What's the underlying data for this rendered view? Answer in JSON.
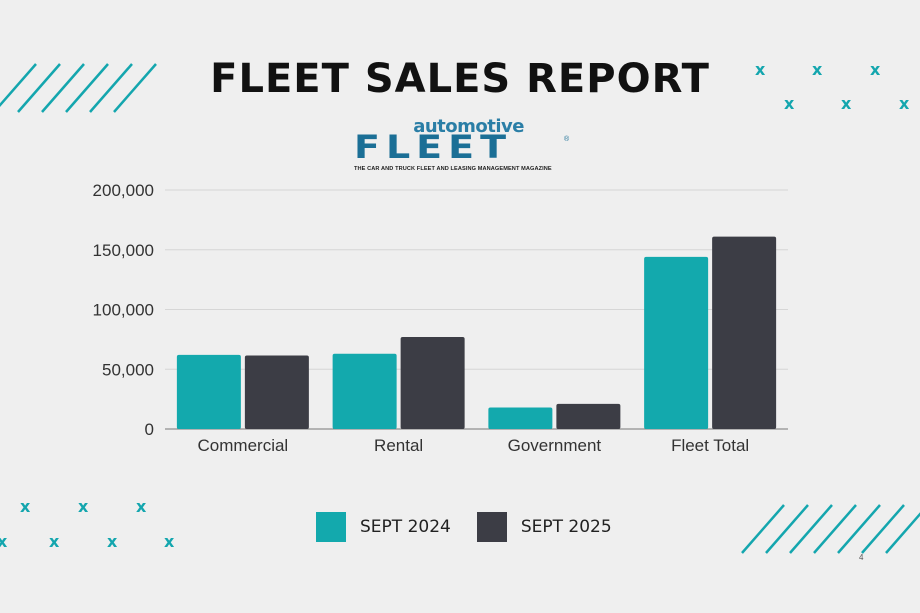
{
  "title": "FLEET SALES REPORT",
  "logo": {
    "top": "automotive",
    "main": "FLEET",
    "registered": "®",
    "subtitle": "THE CAR AND TRUCK FLEET AND LEASING MANAGEMENT MAGAZINE"
  },
  "colors": {
    "accent": "#13a9ad",
    "dark": "#3c3d45",
    "background": "#efefef"
  },
  "chart_data": {
    "type": "bar",
    "title": "",
    "xlabel": "",
    "ylabel": "",
    "categories": [
      "Commercial",
      "Rental",
      "Government",
      "Fleet Total"
    ],
    "series": [
      {
        "name": "SEPT 2024",
        "color": "#13a9ad",
        "values": [
          62000,
          63000,
          18000,
          144000
        ]
      },
      {
        "name": "SEPT 2025",
        "color": "#3c3d45",
        "values": [
          61500,
          77000,
          21000,
          161000
        ]
      }
    ],
    "ylim": [
      0,
      200000
    ],
    "yticks": [
      0,
      50000,
      100000,
      150000,
      200000
    ],
    "ytick_labels": [
      "0",
      "50,000",
      "100,000",
      "150,000",
      "200,000"
    ],
    "grid": true,
    "legend_position": "bottom-center"
  },
  "page_number": "4",
  "decorations": {
    "icon": "x-mark-icon",
    "glyph": "x"
  }
}
